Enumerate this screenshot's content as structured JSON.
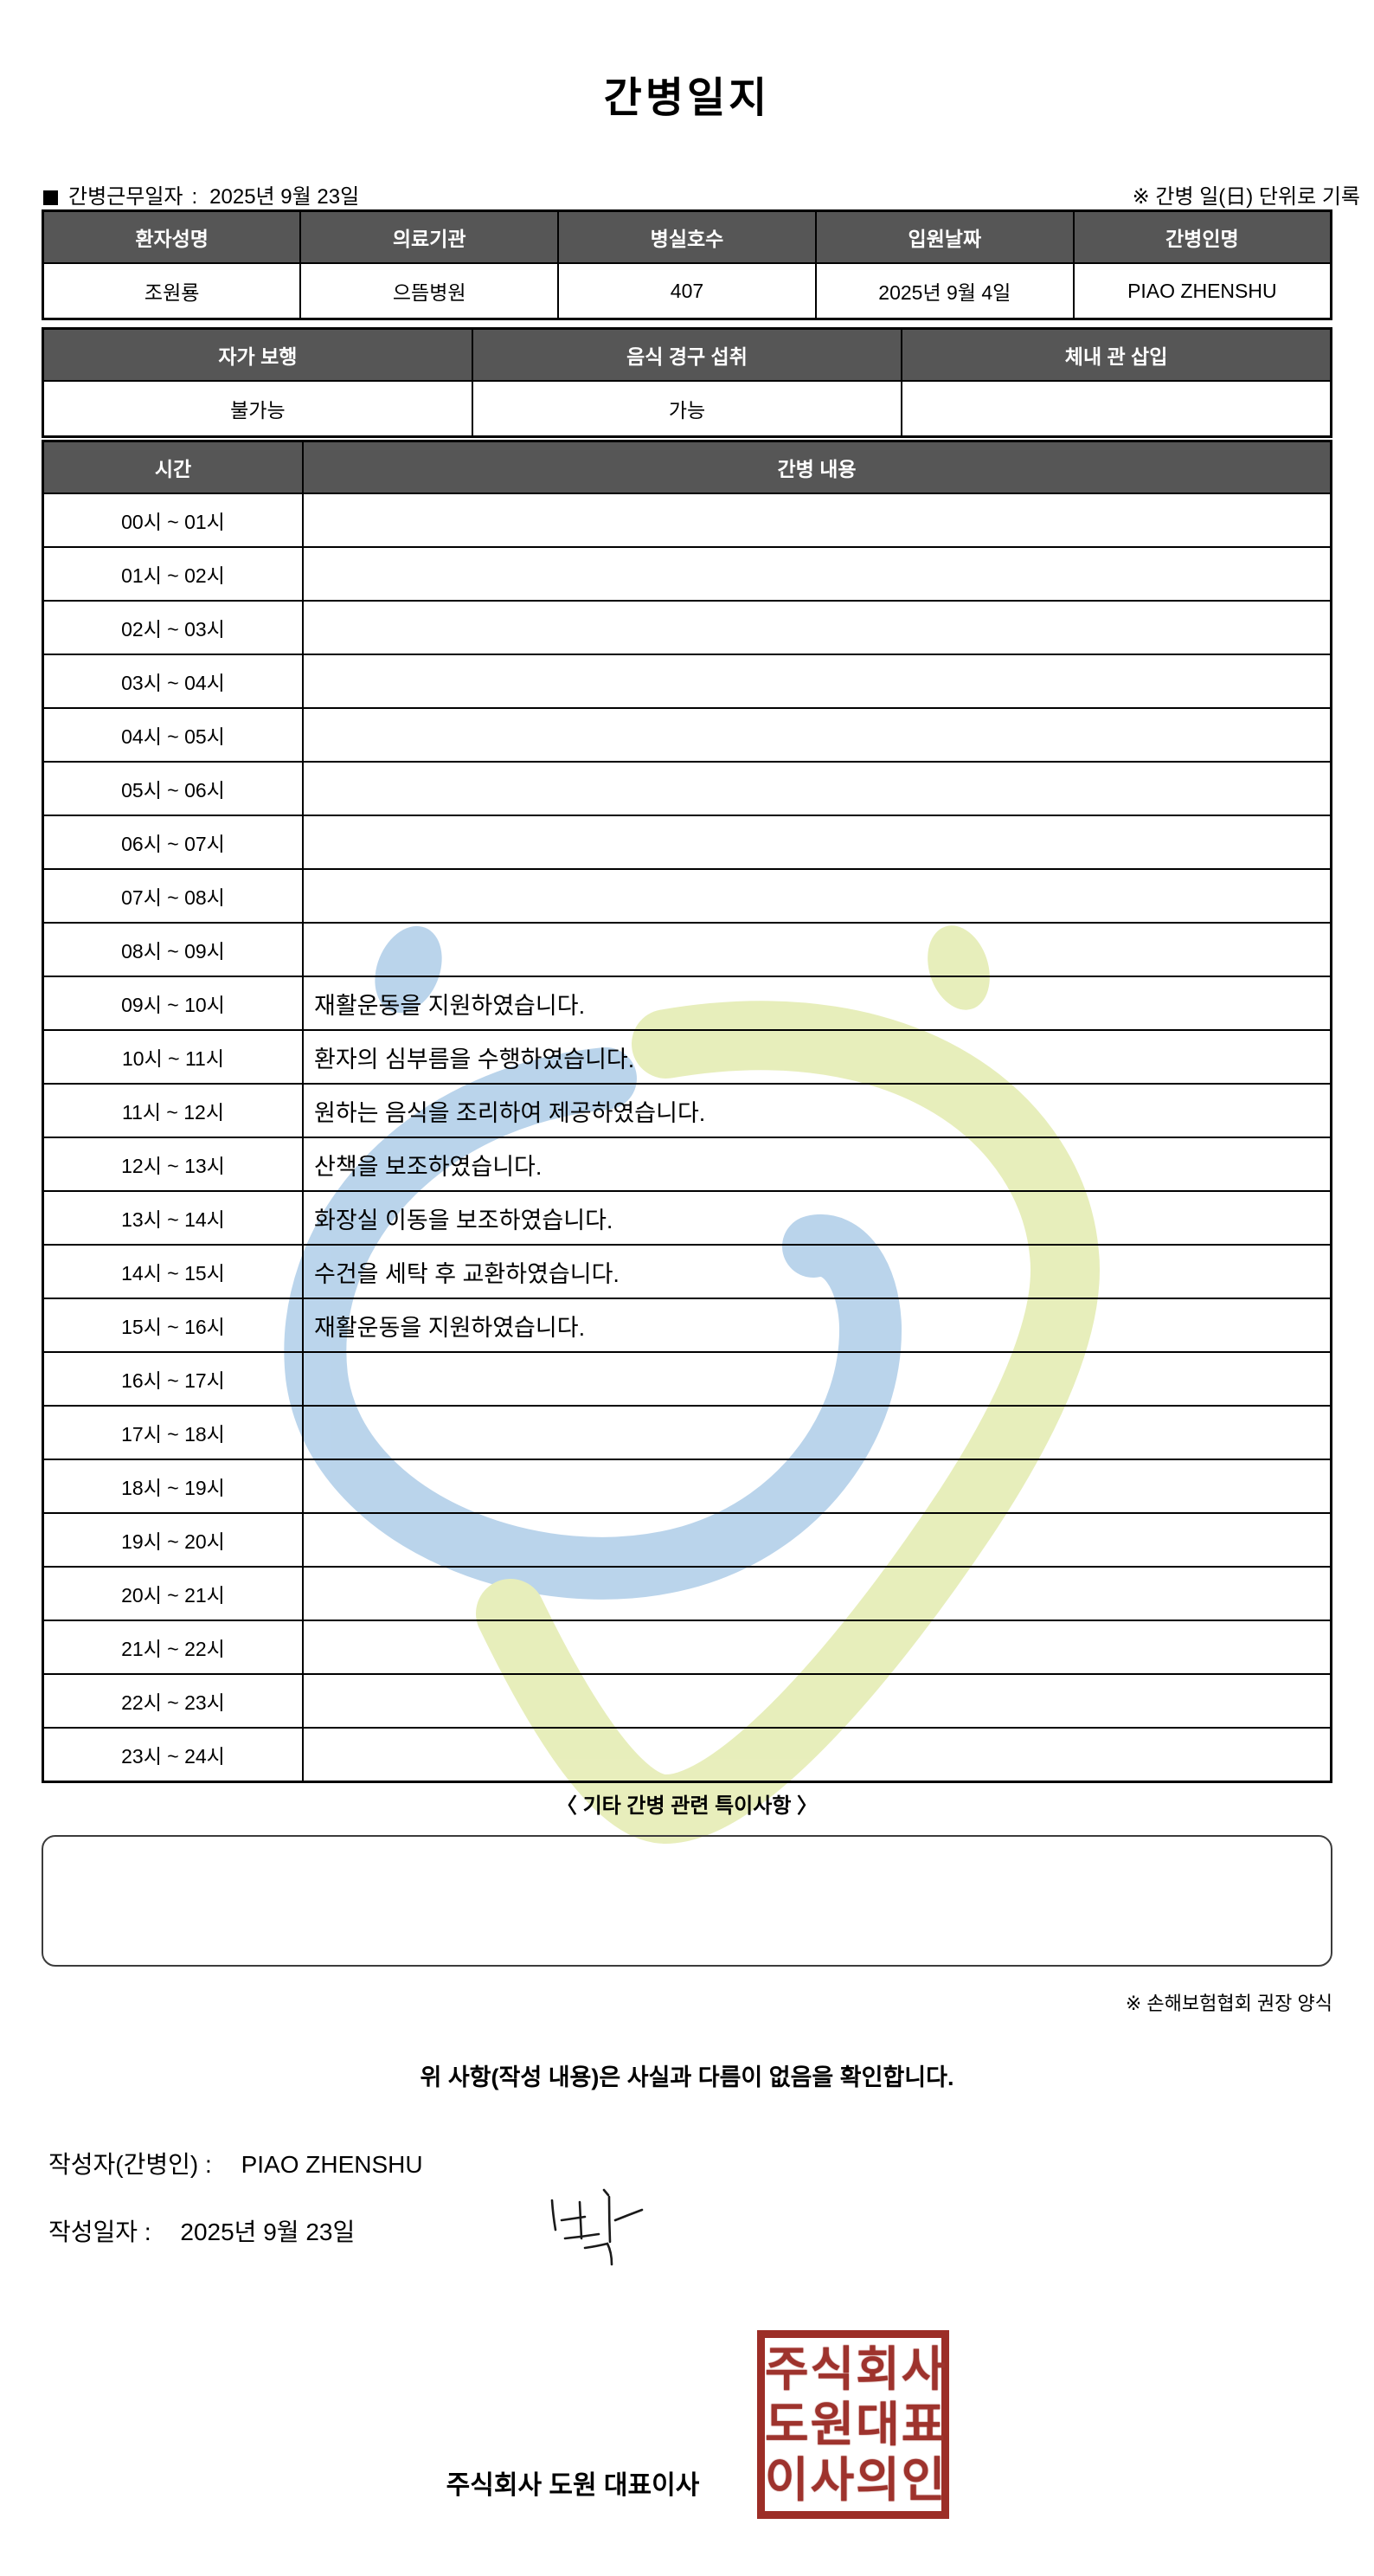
{
  "title": "간병일지",
  "meta": {
    "work_date_label": "간병근무일자",
    "separator": ":",
    "work_date": "2025년 9월 23일",
    "unit_note": "※ 간병 일(日) 단위로 기록"
  },
  "patient_table": {
    "headers": [
      "환자성명",
      "의료기관",
      "병실호수",
      "입원날짜",
      "간병인명"
    ],
    "values": [
      "조원룡",
      "으뜸병원",
      "407",
      "2025년 9월 4일",
      "PIAO ZHENSHU"
    ]
  },
  "status_table": {
    "headers": [
      "자가 보행",
      "음식 경구 섭취",
      "체내 관 삽입"
    ],
    "values": [
      "불가능",
      "가능",
      ""
    ]
  },
  "care_table": {
    "time_header": "시간",
    "content_header": "간병 내용",
    "rows": [
      {
        "time": "00시 ~ 01시",
        "content": ""
      },
      {
        "time": "01시 ~ 02시",
        "content": ""
      },
      {
        "time": "02시 ~ 03시",
        "content": ""
      },
      {
        "time": "03시 ~ 04시",
        "content": ""
      },
      {
        "time": "04시 ~ 05시",
        "content": ""
      },
      {
        "time": "05시 ~ 06시",
        "content": ""
      },
      {
        "time": "06시 ~ 07시",
        "content": ""
      },
      {
        "time": "07시 ~ 08시",
        "content": ""
      },
      {
        "time": "08시 ~ 09시",
        "content": ""
      },
      {
        "time": "09시 ~ 10시",
        "content": "재활운동을 지원하였습니다."
      },
      {
        "time": "10시 ~ 11시",
        "content": "환자의 심부름을 수행하였습니다."
      },
      {
        "time": "11시 ~ 12시",
        "content": "원하는 음식을 조리하여 제공하였습니다."
      },
      {
        "time": "12시 ~ 13시",
        "content": "산책을 보조하였습니다."
      },
      {
        "time": "13시 ~ 14시",
        "content": "화장실 이동을 보조하였습니다."
      },
      {
        "time": "14시 ~ 15시",
        "content": "수건을 세탁 후 교환하였습니다."
      },
      {
        "time": "15시 ~ 16시",
        "content": "재활운동을 지원하였습니다."
      },
      {
        "time": "16시 ~ 17시",
        "content": ""
      },
      {
        "time": "17시 ~ 18시",
        "content": ""
      },
      {
        "time": "18시 ~ 19시",
        "content": ""
      },
      {
        "time": "19시 ~ 20시",
        "content": ""
      },
      {
        "time": "20시 ~ 21시",
        "content": ""
      },
      {
        "time": "21시 ~ 22시",
        "content": ""
      },
      {
        "time": "22시 ~ 23시",
        "content": ""
      },
      {
        "time": "23시 ~ 24시",
        "content": ""
      }
    ]
  },
  "notes": {
    "heading": "〈 기타 간병 관련 특이사항 〉",
    "body": "",
    "form_note": "※ 손해보험협회 권장 양식"
  },
  "footer": {
    "confirmation": "위 사항(작성 내용)은 사실과 다름이 없음을 확인합니다.",
    "writer_label": "작성자(간병인) :",
    "writer_name": "PIAO ZHENSHU",
    "date_label": "작성일자 :",
    "date_value": "2025년 9월 23일",
    "company_line": "주식회사 도원   대표이사",
    "stamp_lines": [
      "주식회사",
      "도원대표",
      "이사의인"
    ]
  },
  "colors": {
    "header_bg": "#565656",
    "border": "#000000",
    "stamp_red": "#9c2e27",
    "watermark_blue": "#b5d1ea",
    "watermark_green": "#e6edb6"
  }
}
